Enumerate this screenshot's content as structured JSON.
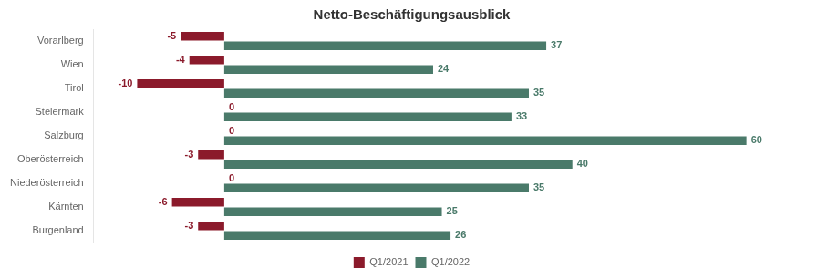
{
  "chart_data": {
    "type": "bar",
    "orientation": "horizontal",
    "title": "Netto-Beschäftigungsausblick",
    "categories": [
      "Vorarlberg",
      "Wien",
      "Tirol",
      "Steiermark",
      "Salzburg",
      "Oberösterreich",
      "Niederösterreich",
      "Kärnten",
      "Burgenland"
    ],
    "series": [
      {
        "name": "Q1/2021",
        "color": "#8B1A2B",
        "values": [
          -5,
          -4,
          -10,
          0,
          0,
          -3,
          0,
          -6,
          -3
        ]
      },
      {
        "name": "Q1/2022",
        "color": "#4A7A6A",
        "values": [
          37,
          24,
          35,
          33,
          60,
          40,
          35,
          25,
          26
        ]
      }
    ],
    "xlim": [
      -15,
      68
    ],
    "grid": false,
    "legend": "bottom",
    "data_labels": true,
    "tick_labels": "y"
  }
}
